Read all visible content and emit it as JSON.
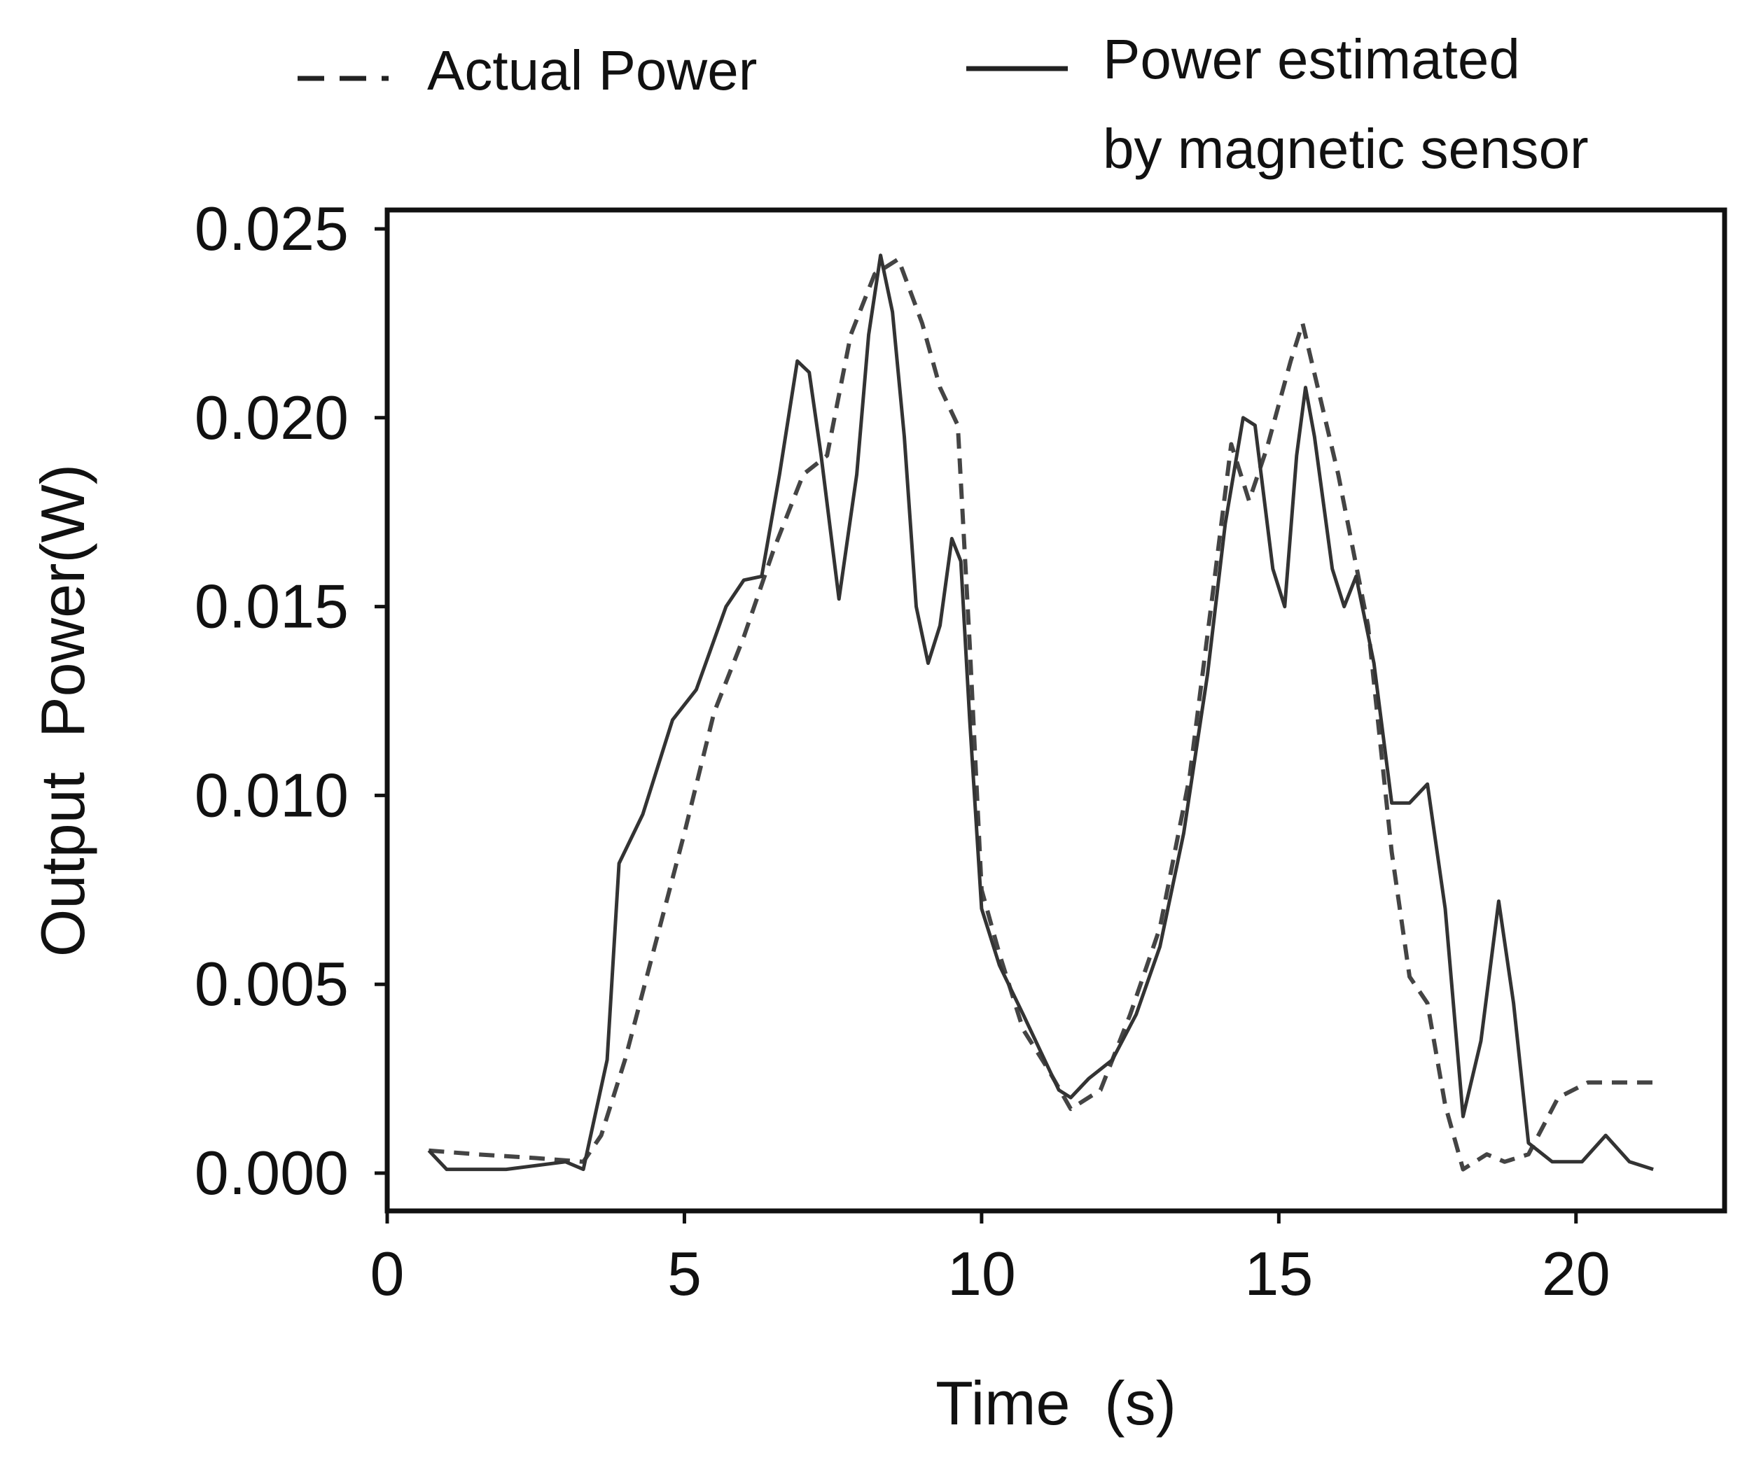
{
  "chart_data": {
    "type": "line",
    "title": "",
    "xlabel": "Time  (s)",
    "ylabel": "Output  Power(W)",
    "xlim": [
      0,
      22.5
    ],
    "ylim": [
      -0.001,
      0.0255
    ],
    "xticks": [
      0,
      5,
      10,
      15,
      20
    ],
    "xtick_labels": [
      "0",
      "5",
      "10",
      "15",
      "20"
    ],
    "yticks": [
      0.0,
      0.005,
      0.01,
      0.015,
      0.02,
      0.025
    ],
    "ytick_labels": [
      "0.000",
      "0.005",
      "0.010",
      "0.015",
      "0.020",
      "0.025"
    ],
    "legend": {
      "placement": "top",
      "entries": [
        {
          "label": "Actual Power",
          "style": "dashed"
        },
        {
          "label_lines": [
            "Power estimated",
            "by magnetic sensor"
          ],
          "style": "solid"
        }
      ]
    },
    "series": [
      {
        "name": "Actual Power",
        "style": "dashed",
        "color": "#444444",
        "points": [
          [
            0.7,
            0.0006
          ],
          [
            1.5,
            0.0005
          ],
          [
            2.5,
            0.0004
          ],
          [
            3.3,
            0.0003
          ],
          [
            3.6,
            0.001
          ],
          [
            4.0,
            0.003
          ],
          [
            4.5,
            0.006
          ],
          [
            5.0,
            0.009
          ],
          [
            5.5,
            0.0122
          ],
          [
            6.0,
            0.0142
          ],
          [
            6.5,
            0.0165
          ],
          [
            7.0,
            0.0185
          ],
          [
            7.4,
            0.019
          ],
          [
            7.8,
            0.0222
          ],
          [
            8.2,
            0.0238
          ],
          [
            8.6,
            0.0242
          ],
          [
            9.0,
            0.0225
          ],
          [
            9.3,
            0.0208
          ],
          [
            9.6,
            0.0198
          ],
          [
            9.8,
            0.014
          ],
          [
            10.0,
            0.0075
          ],
          [
            10.3,
            0.0058
          ],
          [
            10.7,
            0.0038
          ],
          [
            11.1,
            0.0028
          ],
          [
            11.5,
            0.0017
          ],
          [
            12.0,
            0.0022
          ],
          [
            12.5,
            0.0042
          ],
          [
            13.0,
            0.0065
          ],
          [
            13.5,
            0.0105
          ],
          [
            13.9,
            0.0155
          ],
          [
            14.2,
            0.0193
          ],
          [
            14.5,
            0.0178
          ],
          [
            14.8,
            0.0192
          ],
          [
            15.2,
            0.0215
          ],
          [
            15.4,
            0.0225
          ],
          [
            15.7,
            0.0205
          ],
          [
            16.0,
            0.0185
          ],
          [
            16.5,
            0.0145
          ],
          [
            16.9,
            0.0085
          ],
          [
            17.2,
            0.0052
          ],
          [
            17.5,
            0.0045
          ],
          [
            17.8,
            0.0018
          ],
          [
            18.1,
            0.0001
          ],
          [
            18.5,
            0.0005
          ],
          [
            18.8,
            0.0003
          ],
          [
            19.2,
            0.0005
          ],
          [
            19.7,
            0.002
          ],
          [
            20.2,
            0.0024
          ],
          [
            21.3,
            0.0024
          ]
        ]
      },
      {
        "name": "Power estimated by magnetic sensor",
        "style": "solid",
        "color": "#333333",
        "points": [
          [
            0.7,
            0.0006
          ],
          [
            1.0,
            0.0001
          ],
          [
            2.0,
            0.0001
          ],
          [
            3.0,
            0.0003
          ],
          [
            3.3,
            0.0001
          ],
          [
            3.7,
            0.003
          ],
          [
            3.9,
            0.0082
          ],
          [
            4.3,
            0.0095
          ],
          [
            4.8,
            0.012
          ],
          [
            5.2,
            0.0128
          ],
          [
            5.7,
            0.015
          ],
          [
            6.0,
            0.0157
          ],
          [
            6.3,
            0.0158
          ],
          [
            6.6,
            0.0185
          ],
          [
            6.9,
            0.0215
          ],
          [
            7.1,
            0.0212
          ],
          [
            7.3,
            0.019
          ],
          [
            7.6,
            0.0152
          ],
          [
            7.9,
            0.0185
          ],
          [
            8.1,
            0.0222
          ],
          [
            8.3,
            0.0243
          ],
          [
            8.5,
            0.0228
          ],
          [
            8.7,
            0.0195
          ],
          [
            8.9,
            0.015
          ],
          [
            9.1,
            0.0135
          ],
          [
            9.3,
            0.0145
          ],
          [
            9.5,
            0.0168
          ],
          [
            9.65,
            0.0162
          ],
          [
            9.8,
            0.012
          ],
          [
            10.0,
            0.007
          ],
          [
            10.3,
            0.0055
          ],
          [
            10.7,
            0.0042
          ],
          [
            11.0,
            0.0032
          ],
          [
            11.3,
            0.0022
          ],
          [
            11.5,
            0.002
          ],
          [
            11.8,
            0.0025
          ],
          [
            12.2,
            0.003
          ],
          [
            12.6,
            0.0042
          ],
          [
            13.0,
            0.006
          ],
          [
            13.4,
            0.009
          ],
          [
            13.8,
            0.0132
          ],
          [
            14.1,
            0.0172
          ],
          [
            14.4,
            0.02
          ],
          [
            14.6,
            0.0198
          ],
          [
            14.9,
            0.016
          ],
          [
            15.1,
            0.015
          ],
          [
            15.3,
            0.019
          ],
          [
            15.45,
            0.0208
          ],
          [
            15.6,
            0.0195
          ],
          [
            15.9,
            0.016
          ],
          [
            16.1,
            0.015
          ],
          [
            16.3,
            0.0158
          ],
          [
            16.6,
            0.0135
          ],
          [
            16.9,
            0.0098
          ],
          [
            17.2,
            0.0098
          ],
          [
            17.5,
            0.0103
          ],
          [
            17.8,
            0.007
          ],
          [
            18.1,
            0.0015
          ],
          [
            18.4,
            0.0035
          ],
          [
            18.7,
            0.0072
          ],
          [
            18.95,
            0.0045
          ],
          [
            19.2,
            0.0008
          ],
          [
            19.6,
            0.0003
          ],
          [
            20.1,
            0.0003
          ],
          [
            20.5,
            0.001
          ],
          [
            20.9,
            0.0003
          ],
          [
            21.3,
            0.0001
          ]
        ]
      }
    ]
  }
}
